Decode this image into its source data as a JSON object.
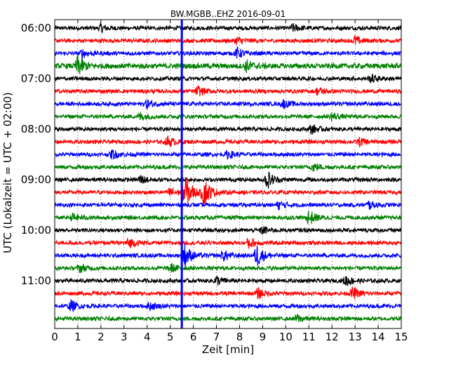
{
  "chart_data": {
    "type": "line",
    "title": "BW.MGBB..EHZ 2016-09-01",
    "xlabel": "Zeit  [min]",
    "ylabel": "UTC (Lokalzeit = UTC + 02:00)",
    "xlim": [
      0,
      15
    ],
    "x_ticks": [
      "0",
      "1",
      "2",
      "3",
      "4",
      "5",
      "6",
      "7",
      "8",
      "9",
      "10",
      "11",
      "12",
      "13",
      "14",
      "15"
    ],
    "y_tick_labels": [
      "06:00",
      "07:00",
      "08:00",
      "09:00",
      "10:00",
      "11:00"
    ],
    "grid": true,
    "trace_colors": [
      "#000000",
      "#ff0000",
      "#0000ff",
      "#008000"
    ],
    "traces": [
      {
        "time": "06:00",
        "amplitude": 0.15,
        "events": [
          {
            "t": 2.0,
            "a": 0.3
          },
          {
            "t": 10.3,
            "a": 0.3
          }
        ]
      },
      {
        "time": "06:15",
        "amplitude": 0.15,
        "events": [
          {
            "t": 7.9,
            "a": 0.3
          },
          {
            "t": 13.0,
            "a": 0.35
          }
        ]
      },
      {
        "time": "06:30",
        "amplitude": 0.15,
        "events": [
          {
            "t": 1.2,
            "a": 0.3
          },
          {
            "t": 7.9,
            "a": 0.4
          }
        ]
      },
      {
        "time": "06:45",
        "amplitude": 0.2,
        "events": [
          {
            "t": 1.0,
            "a": 0.8
          },
          {
            "t": 8.3,
            "a": 0.4
          }
        ]
      },
      {
        "time": "07:00",
        "amplitude": 0.15,
        "events": [
          {
            "t": 13.7,
            "a": 0.3
          }
        ]
      },
      {
        "time": "07:15",
        "amplitude": 0.15,
        "events": [
          {
            "t": 6.2,
            "a": 0.35
          },
          {
            "t": 11.4,
            "a": 0.3
          }
        ]
      },
      {
        "time": "07:30",
        "amplitude": 0.15,
        "events": [
          {
            "t": 4.0,
            "a": 0.3
          },
          {
            "t": 9.9,
            "a": 0.3
          }
        ]
      },
      {
        "time": "07:45",
        "amplitude": 0.15,
        "events": [
          {
            "t": 3.7,
            "a": 0.3
          },
          {
            "t": 12.0,
            "a": 0.3
          }
        ]
      },
      {
        "time": "08:00",
        "amplitude": 0.15,
        "events": [
          {
            "t": 11.1,
            "a": 0.35
          }
        ]
      },
      {
        "time": "08:15",
        "amplitude": 0.15,
        "events": [
          {
            "t": 4.9,
            "a": 0.4
          },
          {
            "t": 13.2,
            "a": 0.3
          }
        ]
      },
      {
        "time": "08:30",
        "amplitude": 0.15,
        "events": [
          {
            "t": 2.5,
            "a": 0.35
          },
          {
            "t": 7.5,
            "a": 0.3
          }
        ]
      },
      {
        "time": "08:45",
        "amplitude": 0.15,
        "events": [
          {
            "t": 11.2,
            "a": 0.3
          }
        ]
      },
      {
        "time": "09:00",
        "amplitude": 0.15,
        "events": [
          {
            "t": 3.7,
            "a": 0.35
          },
          {
            "t": 9.2,
            "a": 0.7
          }
        ]
      },
      {
        "time": "09:15",
        "amplitude": 0.15,
        "events": [
          {
            "t": 5.0,
            "a": 0.4
          },
          {
            "t": 5.65,
            "a": 1.4
          },
          {
            "t": 6.45,
            "a": 1.2
          }
        ]
      },
      {
        "time": "09:30",
        "amplitude": 0.15,
        "events": [
          {
            "t": 9.7,
            "a": 0.3
          },
          {
            "t": 13.6,
            "a": 0.3
          }
        ]
      },
      {
        "time": "09:45",
        "amplitude": 0.15,
        "events": [
          {
            "t": 11.0,
            "a": 0.6
          },
          {
            "t": 0.8,
            "a": 0.3
          }
        ]
      },
      {
        "time": "10:00",
        "amplitude": 0.15,
        "events": [
          {
            "t": 9.0,
            "a": 0.3
          }
        ]
      },
      {
        "time": "10:15",
        "amplitude": 0.15,
        "events": [
          {
            "t": 3.2,
            "a": 0.4
          },
          {
            "t": 8.4,
            "a": 0.45
          }
        ]
      },
      {
        "time": "10:30",
        "amplitude": 0.15,
        "events": [
          {
            "t": 5.6,
            "a": 1.0
          },
          {
            "t": 7.3,
            "a": 0.4
          },
          {
            "t": 8.75,
            "a": 0.9
          }
        ]
      },
      {
        "time": "10:45",
        "amplitude": 0.15,
        "events": [
          {
            "t": 1.1,
            "a": 0.3
          },
          {
            "t": 5.0,
            "a": 0.35
          }
        ]
      },
      {
        "time": "11:00",
        "amplitude": 0.15,
        "events": [
          {
            "t": 7.0,
            "a": 0.35
          },
          {
            "t": 12.6,
            "a": 0.4
          }
        ]
      },
      {
        "time": "11:15",
        "amplitude": 0.15,
        "events": [
          {
            "t": 8.8,
            "a": 0.4
          },
          {
            "t": 12.9,
            "a": 0.45
          }
        ]
      },
      {
        "time": "11:30",
        "amplitude": 0.15,
        "events": [
          {
            "t": 0.7,
            "a": 0.4
          },
          {
            "t": 4.1,
            "a": 0.3
          }
        ]
      },
      {
        "time": "11:45",
        "amplitude": 0.15,
        "events": [
          {
            "t": 10.5,
            "a": 0.3
          }
        ]
      }
    ],
    "marker": {
      "x": 5.5,
      "color": "#0000ff"
    }
  }
}
